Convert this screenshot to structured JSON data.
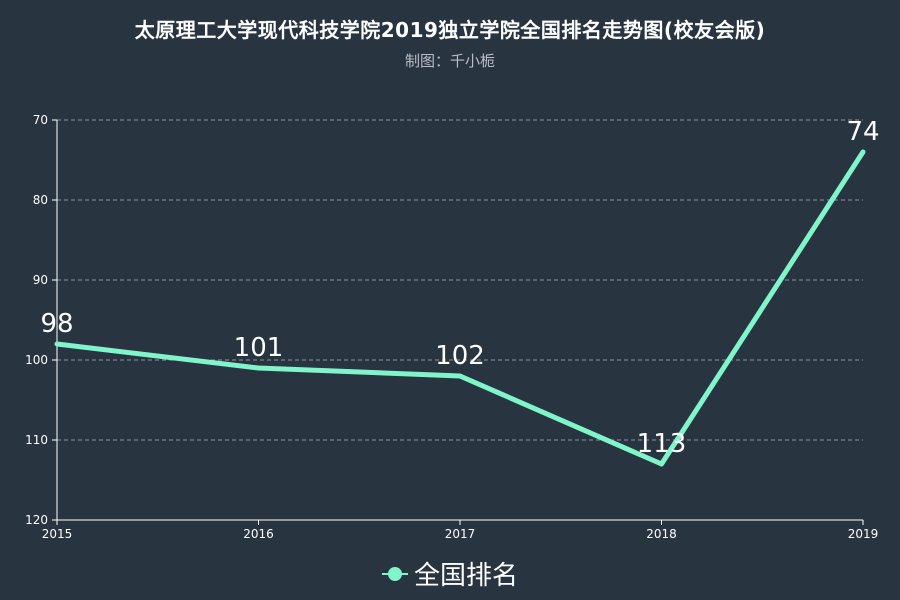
{
  "title": "太原理工大学现代科技学院2019独立学院全国排名走势图(校友会版)",
  "subtitle": "制图：千小栀",
  "colors": {
    "background": "#283440",
    "series": "#7FF5C9",
    "axis": "#ffffff",
    "grid": "#8a939c"
  },
  "chart_data": {
    "type": "line",
    "x": [
      "2015",
      "2016",
      "2017",
      "2018",
      "2019"
    ],
    "series": [
      {
        "name": "全国排名",
        "values": [
          98,
          101,
          102,
          113,
          74
        ]
      }
    ],
    "y_ticks": [
      70,
      80,
      90,
      100,
      110,
      120
    ],
    "ylim": [
      70,
      120
    ],
    "y_inverted": true,
    "grid": true,
    "grid_style": "dashed",
    "data_labels": true,
    "legend_position": "bottom-center",
    "xlabel": "",
    "ylabel": ""
  }
}
